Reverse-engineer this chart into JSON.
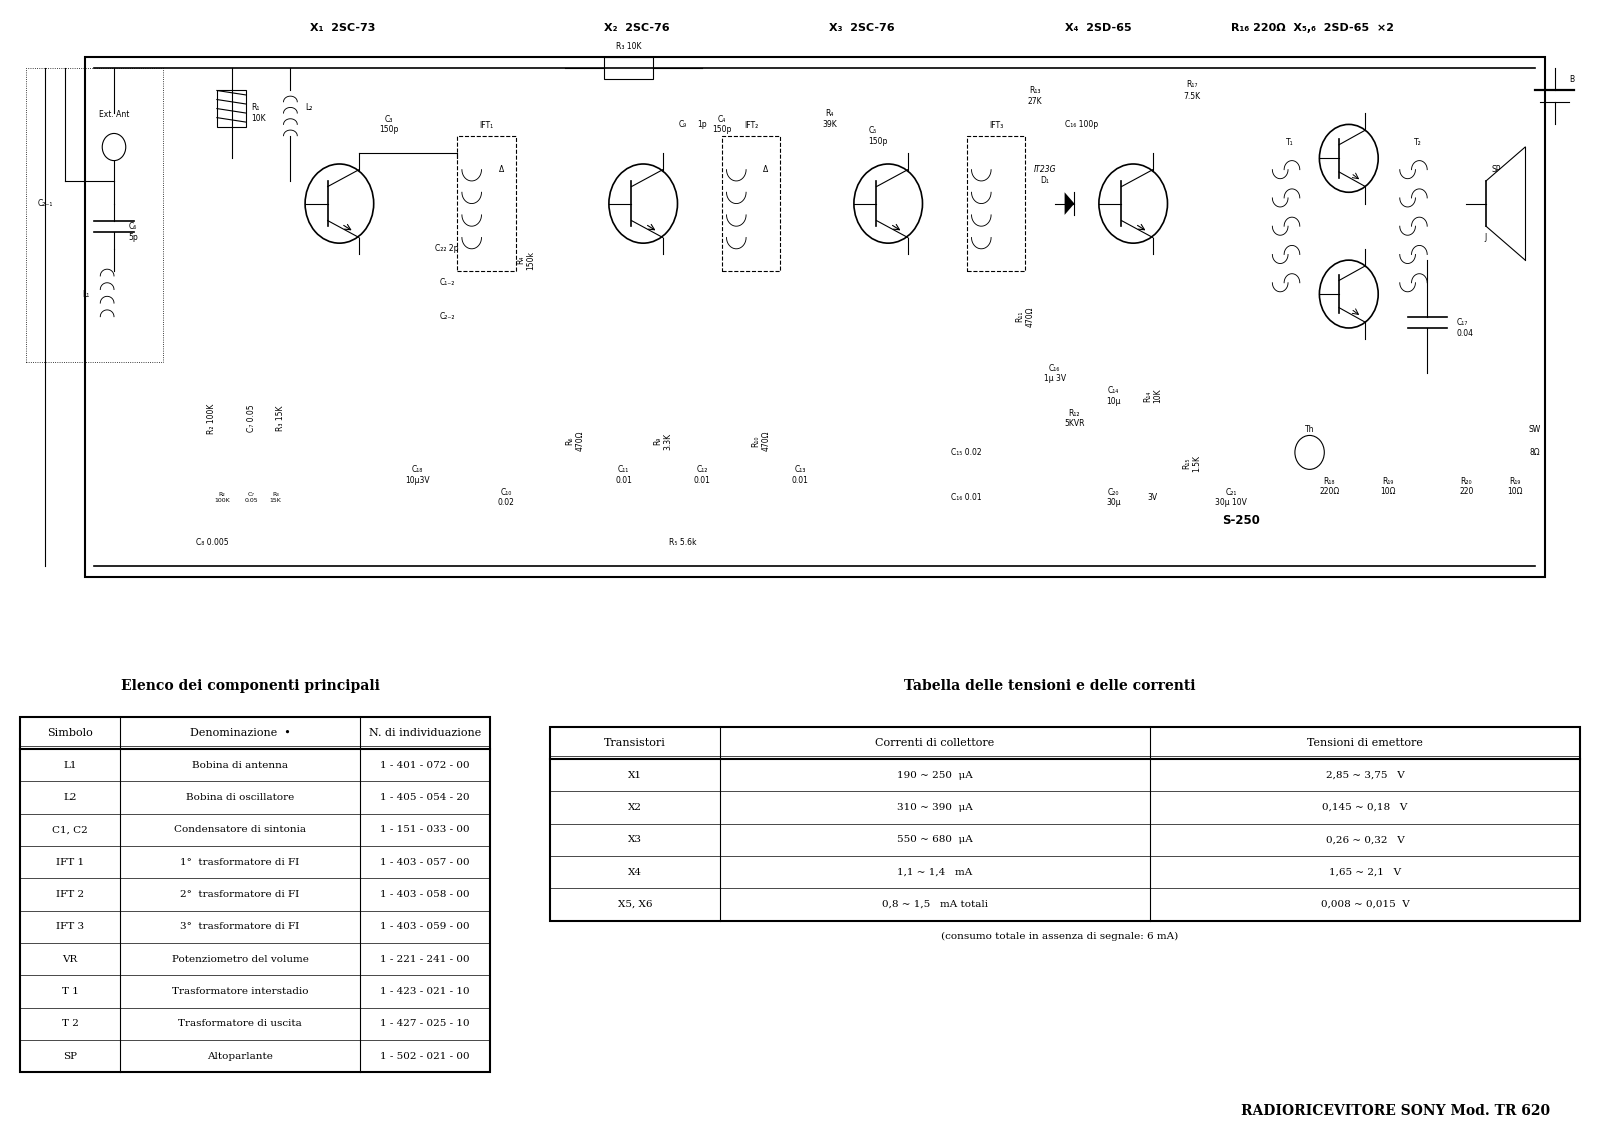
{
  "title": "Sony TR-620 Schematic",
  "bg_color": "#ffffff",
  "schematic_title": "RADIORICEVITORE SONY Mod. TR 620",
  "components_title": "Elenco dei componenti principali",
  "table_title2": "Tabella delle tensioni e delle correnti",
  "table1_headers": [
    "Simbolo",
    "Denominazione  •",
    "N. di individuazione"
  ],
  "table1_rows": [
    [
      "L1",
      "Bobina di antenna",
      "1 - 401 - 072 - 00"
    ],
    [
      "L2",
      "Bobina di oscillatore",
      "1 - 405 - 054 - 20"
    ],
    [
      "C1, C2",
      "Condensatore di sintonia",
      "1 - 151 - 033 - 00"
    ],
    [
      "IFT 1",
      "1°  trasformatore di FI",
      "1 - 403 - 057 - 00"
    ],
    [
      "IFT 2",
      "2°  trasformatore di FI",
      "1 - 403 - 058 - 00"
    ],
    [
      "IFT 3",
      "3°  trasformatore di FI",
      "1 - 403 - 059 - 00"
    ],
    [
      "VR",
      "Potenziometro del volume",
      "1 - 221 - 241 - 00"
    ],
    [
      "T 1",
      "Trasformatore interstadio",
      "1 - 423 - 021 - 10"
    ],
    [
      "T 2",
      "Trasformatore di uscita",
      "1 - 427 - 025 - 10"
    ],
    [
      "SP",
      "Altoparlante",
      "1 - 502 - 021 - 00"
    ]
  ],
  "table2_headers": [
    "Transistori",
    "Correnti di collettore",
    "Tensioni di emettore"
  ],
  "table2_rows": [
    [
      "X1",
      "190 ~ 250  μA",
      "2,85 ~ 3,75   V"
    ],
    [
      "X2",
      "310 ~ 390  μA",
      "0,145 ~ 0,18   V"
    ],
    [
      "X3",
      "550 ~ 680  μA",
      "0,26 ~ 0,32   V"
    ],
    [
      "X4",
      "1,1 ~ 1,4   mA",
      "1,65 ~ 2,1   V"
    ],
    [
      "X5, X6",
      "0,8 ~ 1,5   mA totali",
      "0,008 ~ 0,015  V"
    ]
  ],
  "table2_note": "(consumo totale in assenza di segnale: 6 mA)"
}
